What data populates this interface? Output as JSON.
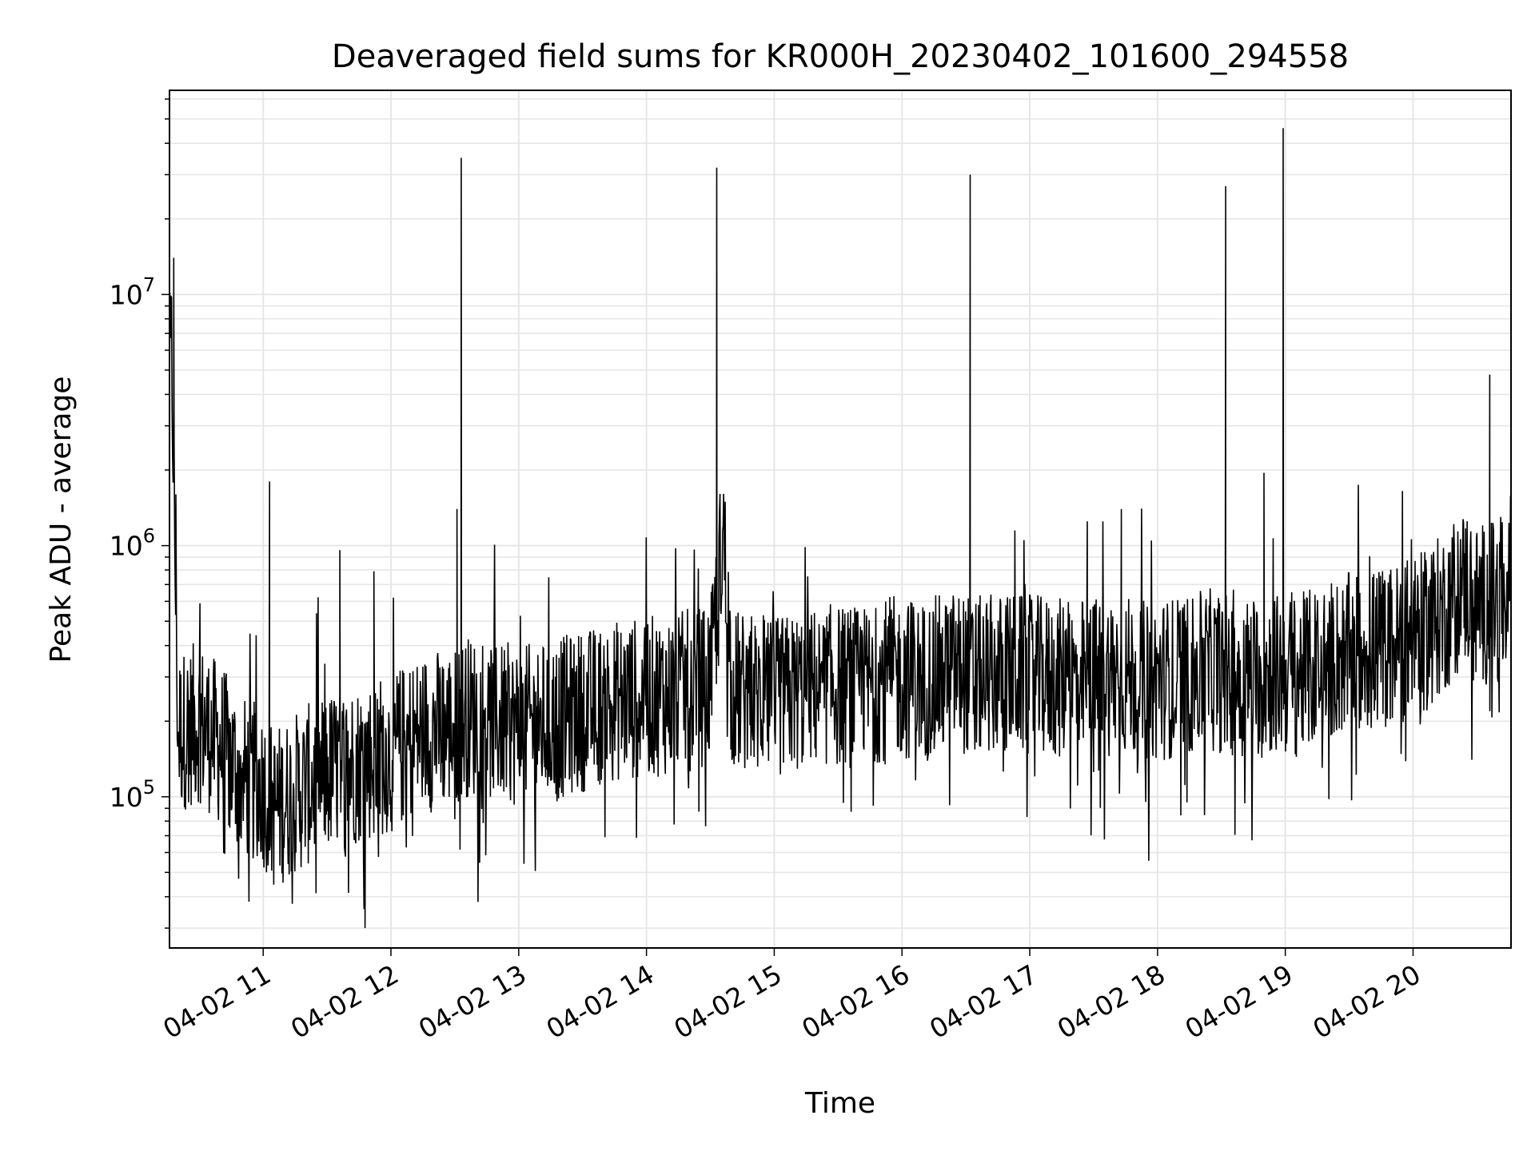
{
  "chart_data": {
    "type": "line",
    "title": "Deaveraged field sums for KR000H_20230402_101600_294558",
    "xlabel": "Time",
    "ylabel": "Peak ADU - average",
    "y_scale": "log",
    "grid": true,
    "x_range": [
      "2023-04-02 10:16",
      "2023-04-02 20:46"
    ],
    "y_range": [
      25000,
      65000000
    ],
    "x_ticks": [
      "04-02 11",
      "04-02 12",
      "04-02 13",
      "04-02 14",
      "04-02 15",
      "04-02 16",
      "04-02 17",
      "04-02 18",
      "04-02 19",
      "04-02 20"
    ],
    "y_ticks": [
      {
        "value": 100000,
        "base": "10",
        "exp": "5"
      },
      {
        "value": 1000000,
        "base": "10",
        "exp": "6"
      },
      {
        "value": 10000000,
        "base": "10",
        "exp": "7"
      }
    ],
    "line_color": "#000000",
    "series": [
      {
        "values": [
          [
            "10:16",
            4500000
          ],
          [
            "10:17",
            6000000
          ],
          [
            "10:18",
            14000000
          ],
          [
            "10:19",
            1600000
          ],
          [
            "10:20",
            180000
          ],
          [
            "10:30",
            200000
          ],
          [
            "10:40",
            160000
          ],
          [
            "10:50",
            120000
          ],
          [
            "11:00",
            110000
          ],
          [
            "11:03",
            1800000
          ],
          [
            "11:05",
            90000
          ],
          [
            "11:20",
            110000
          ],
          [
            "11:35",
            130000
          ],
          [
            "11:36",
            960000
          ],
          [
            "11:50",
            140000
          ],
          [
            "11:52",
            790000
          ],
          [
            "12:00",
            150000
          ],
          [
            "12:15",
            180000
          ],
          [
            "12:30",
            190000
          ],
          [
            "12:31",
            1400000
          ],
          [
            "12:33",
            35000000
          ],
          [
            "12:35",
            210000
          ],
          [
            "12:50",
            200000
          ],
          [
            "13:00",
            190000
          ],
          [
            "13:15",
            200000
          ],
          [
            "13:30",
            220000
          ],
          [
            "13:45",
            240000
          ],
          [
            "14:00",
            250000
          ],
          [
            "14:15",
            260000
          ],
          [
            "14:30",
            280000
          ],
          [
            "14:33",
            32000000
          ],
          [
            "14:36",
            1150000
          ],
          [
            "14:40",
            270000
          ],
          [
            "14:55",
            240000
          ],
          [
            "15:10",
            260000
          ],
          [
            "15:25",
            280000
          ],
          [
            "15:40",
            270000
          ],
          [
            "15:55",
            300000
          ],
          [
            "16:10",
            290000
          ],
          [
            "16:25",
            320000
          ],
          [
            "16:32",
            30000000
          ],
          [
            "16:35",
            300000
          ],
          [
            "16:50",
            310000
          ],
          [
            "16:53",
            1150000
          ],
          [
            "17:05",
            300000
          ],
          [
            "17:20",
            290000
          ],
          [
            "17:27",
            1250000
          ],
          [
            "17:40",
            310000
          ],
          [
            "17:43",
            1400000
          ],
          [
            "17:55",
            290000
          ],
          [
            "18:10",
            300000
          ],
          [
            "18:25",
            320000
          ],
          [
            "18:32",
            27000000
          ],
          [
            "18:40",
            300000
          ],
          [
            "18:50",
            1950000
          ],
          [
            "18:55",
            310000
          ],
          [
            "18:59",
            46000000
          ],
          [
            "19:05",
            300000
          ],
          [
            "19:20",
            350000
          ],
          [
            "19:35",
            380000
          ],
          [
            "19:50",
            400000
          ],
          [
            "19:55",
            1650000
          ],
          [
            "20:05",
            450000
          ],
          [
            "20:15",
            550000
          ],
          [
            "20:25",
            700000
          ],
          [
            "20:30",
            580000
          ],
          [
            "20:36",
            4800000
          ],
          [
            "20:40",
            600000
          ],
          [
            "20:46",
            650000
          ]
        ]
      }
    ]
  }
}
